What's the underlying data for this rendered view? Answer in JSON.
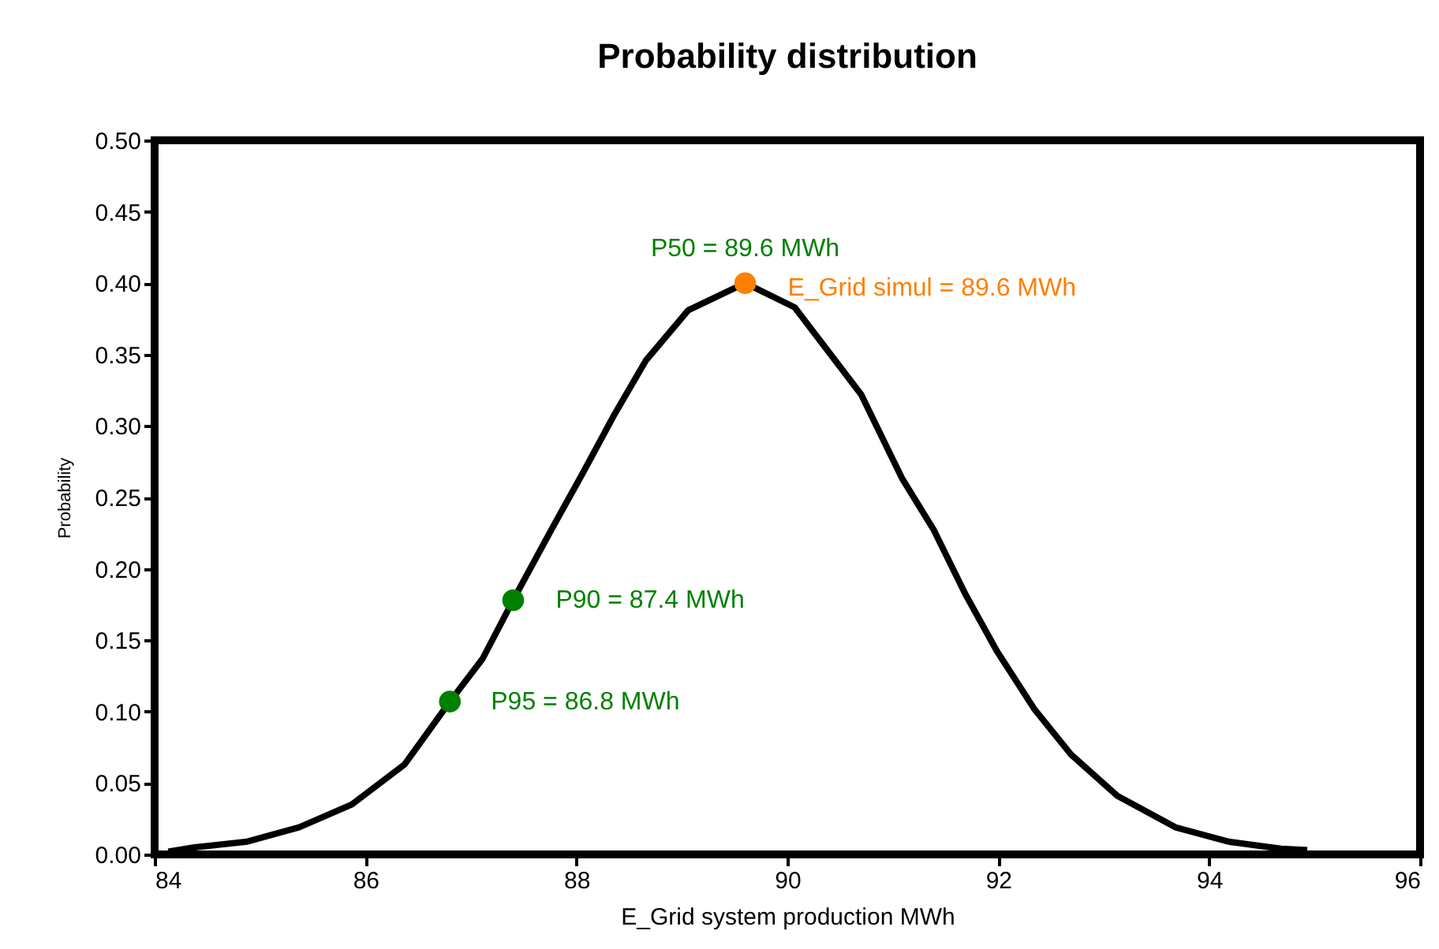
{
  "chart_data": {
    "type": "line",
    "title": "Probability distribution",
    "xlabel": "E_Grid system production MWh",
    "ylabel": "Probability",
    "xlim": [
      84,
      96
    ],
    "xticks": [
      84,
      86,
      88,
      90,
      92,
      94,
      96
    ],
    "ylim": [
      0,
      0.5
    ],
    "yticks": [
      {
        "value": 0,
        "label": "0.00"
      },
      {
        "value": 0.05,
        "label": "0.05"
      },
      {
        "value": 0.1,
        "label": "0.10"
      },
      {
        "value": 0.15,
        "label": "0.15"
      },
      {
        "value": 0.2,
        "label": "0.20"
      },
      {
        "value": 0.25,
        "label": "0.25"
      },
      {
        "value": 0.3,
        "label": "0.30"
      },
      {
        "value": 0.35,
        "label": "0.35"
      },
      {
        "value": 0.4,
        "label": "0.40"
      },
      {
        "value": 0.45,
        "label": "0.45"
      },
      {
        "value": 0.5,
        "label": "0.50"
      }
    ],
    "grid": false,
    "series": [
      {
        "type": "line",
        "color": "#000000",
        "marker": "none",
        "x": [
          84.13,
          84.38,
          84.88,
          85.37,
          85.87,
          86.37,
          86.8,
          87.11,
          87.4,
          87.76,
          88.06,
          88.36,
          88.66,
          89.06,
          89.6,
          90.07,
          90.7,
          91.09,
          91.39,
          91.69,
          91.99,
          92.34,
          92.69,
          93.13,
          93.68,
          94.18,
          94.68,
          94.93
        ],
        "values": [
          0.002,
          0.005,
          0.009,
          0.019,
          0.035,
          0.063,
          0.107,
          0.137,
          0.178,
          0.227,
          0.267,
          0.308,
          0.346,
          0.381,
          0.4,
          0.383,
          0.322,
          0.263,
          0.227,
          0.182,
          0.142,
          0.102,
          0.07,
          0.041,
          0.019,
          0.009,
          0.004,
          0.003
        ]
      },
      {
        "type": "scatter",
        "color": "#008000",
        "marker": "circle",
        "x": [
          86.8,
          87.4
        ],
        "values": [
          0.107,
          0.178
        ]
      },
      {
        "type": "scatter",
        "color": "#ff7f00",
        "marker": "circle",
        "x": [
          89.6
        ],
        "values": [
          0.4
        ]
      }
    ],
    "annotations": [
      {
        "text": "P50 = 89.6 MWh",
        "x": 89.6,
        "y": 0.4
      },
      {
        "text": "E_Grid simul = 89.6 MWh",
        "x": 89.6,
        "y": 0.4
      },
      {
        "text": "P90 = 87.4 MWh",
        "x": 87.4,
        "y": 0.178
      },
      {
        "text": "P95 = 86.8 MWh",
        "x": 86.8,
        "y": 0.107
      }
    ]
  }
}
